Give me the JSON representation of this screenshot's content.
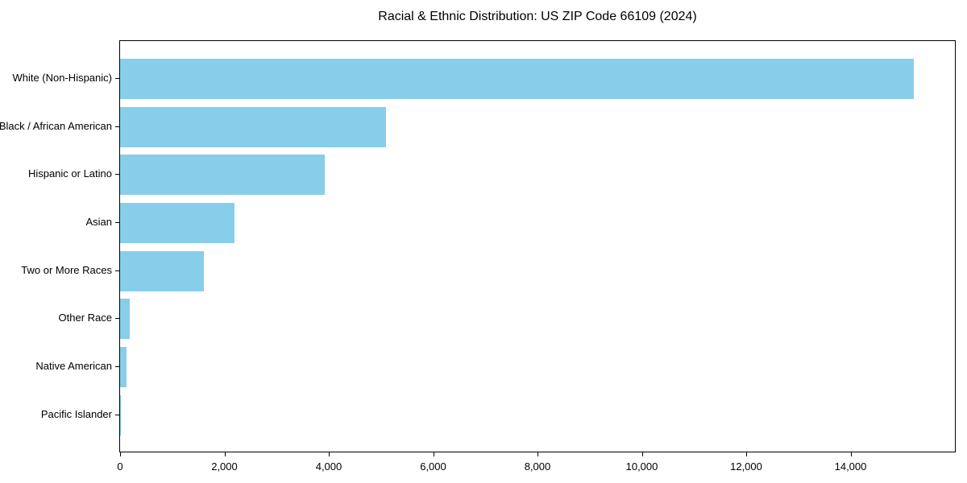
{
  "chart_data": {
    "type": "bar",
    "orientation": "horizontal",
    "title": "Racial & Ethnic Distribution: US ZIP Code 66109 (2024)",
    "categories": [
      "White (Non-Hispanic)",
      "Black / African American",
      "Hispanic or Latino",
      "Asian",
      "Two or More Races",
      "Other Race",
      "Native American",
      "Pacific Islander"
    ],
    "values": [
      15220,
      5100,
      3930,
      2200,
      1600,
      185,
      125,
      10
    ],
    "xlabel": "",
    "ylabel": "",
    "xlim": [
      0,
      16000
    ],
    "x_ticks": [
      0,
      2000,
      4000,
      6000,
      8000,
      10000,
      12000,
      14000
    ],
    "x_tick_labels": [
      "0",
      "2,000",
      "4,000",
      "6,000",
      "8,000",
      "10,000",
      "12,000",
      "14,000"
    ],
    "bar_color": "#87CEEB",
    "frame_color": "#000000",
    "grid": false,
    "legend": null,
    "sort_order": "descending"
  }
}
